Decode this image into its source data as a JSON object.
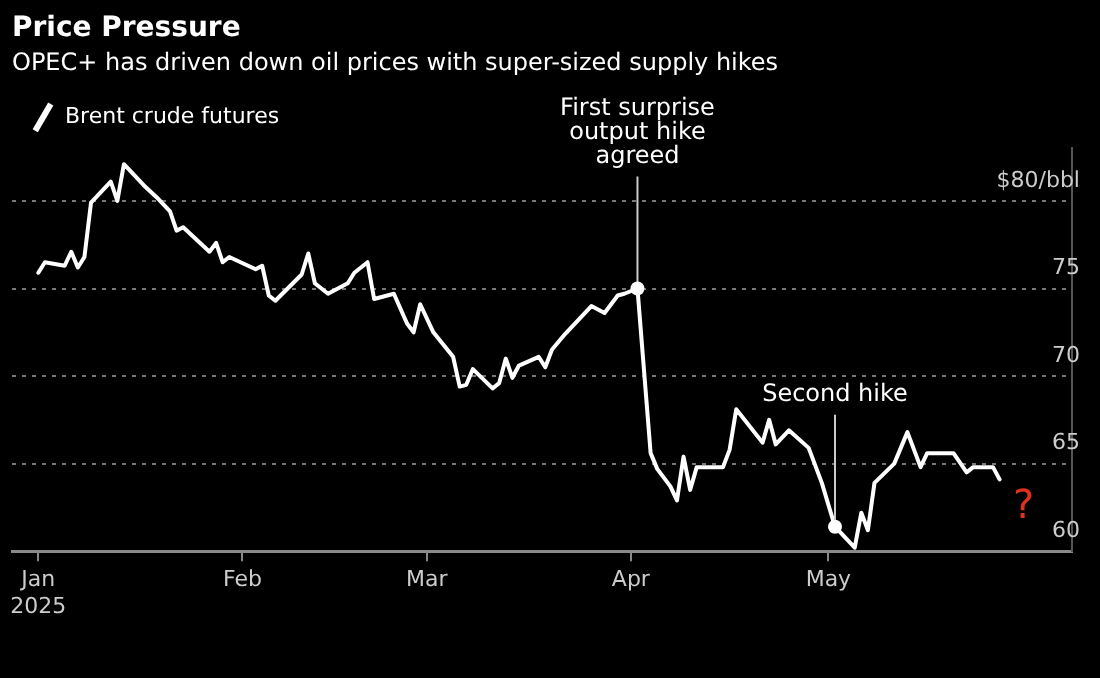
{
  "chart_data": {
    "type": "line",
    "title": "Price Pressure",
    "subtitle": "OPEC+ has driven down oil prices with super-sized supply hikes",
    "legend": "top left",
    "grid": "y",
    "marker": "none",
    "line_style": "solid",
    "x": [
      "2025-01-01",
      "2025-01-02",
      "2025-01-05",
      "2025-01-06",
      "2025-01-07",
      "2025-01-08",
      "2025-01-09",
      "2025-01-12",
      "2025-01-13",
      "2025-01-14",
      "2025-01-17",
      "2025-01-19",
      "2025-01-21",
      "2025-01-22",
      "2025-01-23",
      "2025-01-27",
      "2025-01-28",
      "2025-01-29",
      "2025-01-30",
      "2025-02-03",
      "2025-02-04",
      "2025-02-05",
      "2025-02-06",
      "2025-02-10",
      "2025-02-11",
      "2025-02-12",
      "2025-02-14",
      "2025-02-17",
      "2025-02-18",
      "2025-02-20",
      "2025-02-21",
      "2025-02-24",
      "2025-02-26",
      "2025-02-27",
      "2025-02-28",
      "2025-03-02",
      "2025-03-05",
      "2025-03-06",
      "2025-03-07",
      "2025-03-08",
      "2025-03-11",
      "2025-03-12",
      "2025-03-13",
      "2025-03-14",
      "2025-03-15",
      "2025-03-18",
      "2025-03-19",
      "2025-03-20",
      "2025-03-22",
      "2025-03-24",
      "2025-03-26",
      "2025-03-28",
      "2025-03-30",
      "2025-03-31",
      "2025-04-02",
      "2025-04-04",
      "2025-04-05",
      "2025-04-07",
      "2025-04-08",
      "2025-04-09",
      "2025-04-10",
      "2025-04-11",
      "2025-04-15",
      "2025-04-16",
      "2025-04-17",
      "2025-04-21",
      "2025-04-22",
      "2025-04-23",
      "2025-04-25",
      "2025-04-28",
      "2025-04-30",
      "2025-05-02",
      "2025-05-05",
      "2025-05-06",
      "2025-05-07",
      "2025-05-08",
      "2025-05-11",
      "2025-05-13",
      "2025-05-15",
      "2025-05-16",
      "2025-05-20",
      "2025-05-22",
      "2025-05-23",
      "2025-05-26",
      "2025-05-27"
    ],
    "series": [
      {
        "name": "Brent crude futures",
        "color": "#ffffff",
        "values": [
          75.9,
          76.5,
          76.3,
          77.1,
          76.2,
          76.8,
          79.9,
          81.1,
          80.0,
          82.1,
          80.9,
          80.2,
          79.4,
          78.3,
          78.5,
          77.1,
          77.6,
          76.5,
          76.8,
          76.1,
          76.3,
          74.6,
          74.3,
          75.8,
          77.0,
          75.3,
          74.7,
          75.3,
          75.9,
          76.5,
          74.4,
          74.7,
          73.0,
          72.5,
          74.1,
          72.5,
          71.1,
          69.4,
          69.5,
          70.4,
          69.3,
          69.6,
          71.0,
          69.9,
          70.6,
          71.1,
          70.5,
          71.5,
          72.4,
          73.2,
          74.0,
          73.6,
          74.6,
          74.7,
          75.0,
          65.6,
          64.7,
          63.7,
          62.9,
          65.4,
          63.5,
          64.8,
          64.8,
          65.8,
          68.1,
          66.2,
          67.5,
          66.1,
          66.9,
          65.9,
          63.9,
          61.4,
          60.2,
          62.2,
          61.2,
          63.9,
          65.0,
          66.8,
          64.8,
          65.6,
          65.6,
          64.5,
          64.8,
          64.8,
          64.1
        ]
      }
    ],
    "xlim": [
      "2024-12-28",
      "2025-06-07"
    ],
    "xticks": [
      {
        "value": "2025-01-01",
        "label": "Jan 2025"
      },
      {
        "value": "2025-02-01",
        "label": "Feb"
      },
      {
        "value": "2025-03-01",
        "label": "Mar"
      },
      {
        "value": "2025-04-01",
        "label": "Apr"
      },
      {
        "value": "2025-05-01",
        "label": "May"
      }
    ],
    "ylim": [
      60,
      83
    ],
    "yticks": [
      60,
      65,
      70,
      75,
      {
        "value": 80,
        "label": "$80/bbl"
      }
    ],
    "annotations": [
      {
        "text": "First surprise\noutput hike\nagreed",
        "x": "2025-04-02",
        "y": 75.0
      },
      {
        "text": "Second hike",
        "x": "2025-05-02",
        "y": 61.4
      },
      "?"
    ]
  }
}
